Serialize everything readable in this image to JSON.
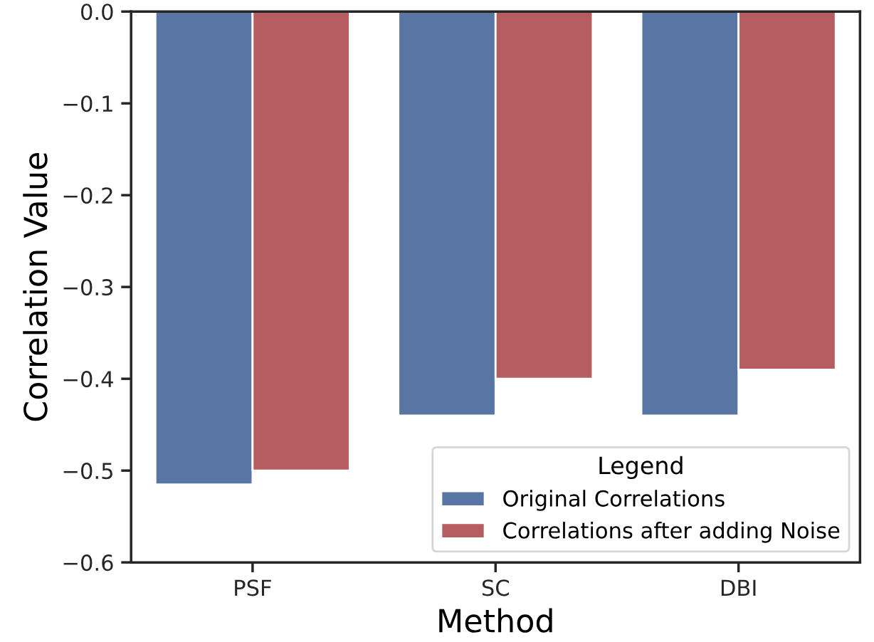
{
  "chart_data": {
    "type": "bar",
    "xlabel": "Method",
    "ylabel": "Correlation Value",
    "legend_title": "Legend",
    "categories": [
      "PSF",
      "SC",
      "DBI"
    ],
    "series": [
      {
        "name": "Original Correlations",
        "color": "#5875a4",
        "values": [
          -0.515,
          -0.44,
          -0.44
        ]
      },
      {
        "name": "Correlations after adding Noise",
        "color": "#b55d60",
        "values": [
          -0.5,
          -0.4,
          -0.39
        ]
      }
    ],
    "ylim": [
      -0.6,
      0.0
    ],
    "yticks": [
      {
        "value": -0.6,
        "label": "−0.6"
      },
      {
        "value": -0.5,
        "label": "−0.5"
      },
      {
        "value": -0.4,
        "label": "−0.4"
      },
      {
        "value": -0.3,
        "label": "−0.3"
      },
      {
        "value": -0.2,
        "label": "−0.2"
      },
      {
        "value": -0.1,
        "label": "−0.1"
      },
      {
        "value": 0.0,
        "label": "0.0"
      }
    ],
    "grid": false,
    "legend": "bottom right"
  }
}
